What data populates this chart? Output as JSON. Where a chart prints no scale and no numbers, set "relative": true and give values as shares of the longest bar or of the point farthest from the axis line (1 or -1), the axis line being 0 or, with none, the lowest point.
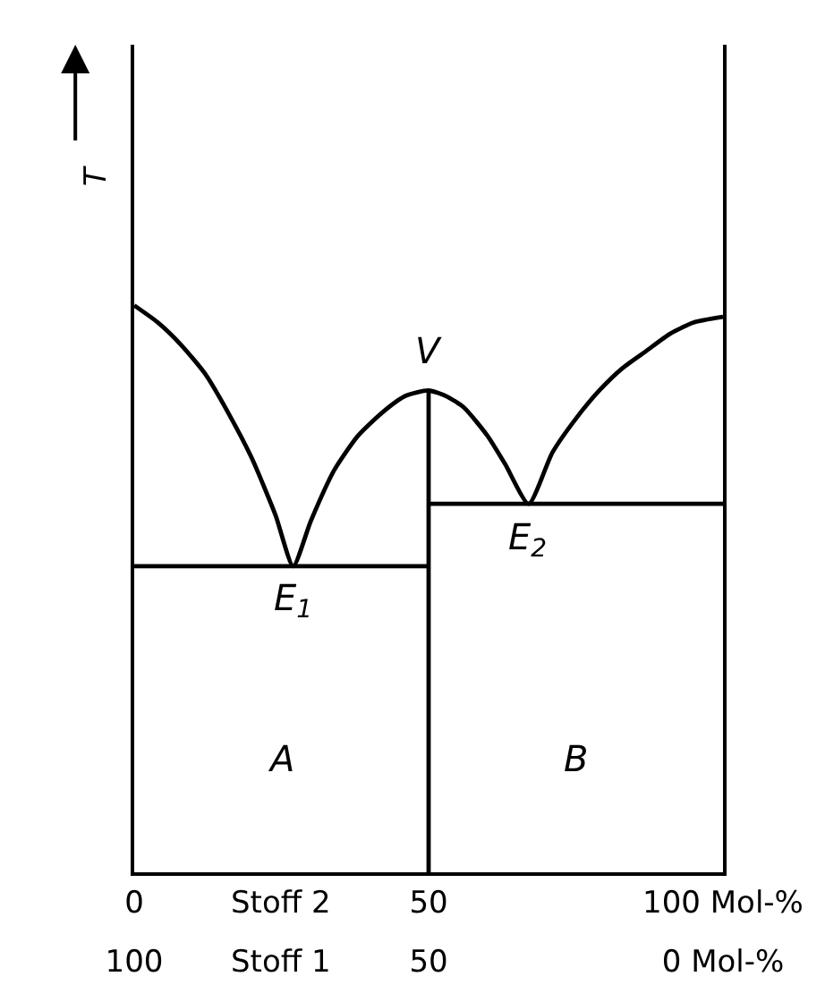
{
  "chart_data": {
    "type": "line",
    "relative": true,
    "ylabel": "T",
    "xlabel": "Stoff 2",
    "x2label": "Stoff 1",
    "xlim": [
      0,
      100
    ],
    "xticks": [
      0,
      50,
      {
        "value": 100,
        "label": "100 Mol-%"
      }
    ],
    "x2lim": [
      100,
      0
    ],
    "x2ticks": [
      100,
      50,
      {
        "value": 0,
        "label": "0 Mol-%"
      }
    ],
    "marker": "none",
    "line_style": "solid",
    "series": [
      {
        "color": "#000000",
        "x": [
          0,
          4,
          8,
          12,
          16,
          20,
          24,
          27,
          30,
          34,
          38,
          42,
          46,
          50,
          53,
          56,
          60,
          63,
          67,
          71,
          75,
          79,
          83,
          87,
          91,
          95,
          100
        ],
        "values": [
          1,
          0.97,
          0.93,
          0.88,
          0.81,
          0.73,
          0.63,
          0.54,
          0.62,
          0.71,
          0.77,
          0.81,
          0.84,
          0.85,
          0.84,
          0.82,
          0.77,
          0.72,
          0.65,
          0.74,
          0.8,
          0.85,
          0.89,
          0.92,
          0.95,
          0.97,
          0.98
        ]
      },
      {
        "color": "#000000",
        "x": [
          0,
          50
        ],
        "values": [
          0.54,
          0.54
        ]
      },
      {
        "color": "#000000",
        "x": [
          50,
          100
        ],
        "values": [
          0.65,
          0.65
        ]
      },
      {
        "color": "#000000",
        "x": [
          50,
          50
        ],
        "values": [
          0,
          0.85
        ]
      }
    ],
    "annotations": [
      {
        "text": "V",
        "x": 50,
        "y": 0.85
      },
      {
        "text": "E$_{1}$",
        "x": 27,
        "y": 0.54
      },
      {
        "text": "E$_{2}$",
        "x": 67,
        "y": 0.65
      },
      "A",
      "B"
    ]
  }
}
